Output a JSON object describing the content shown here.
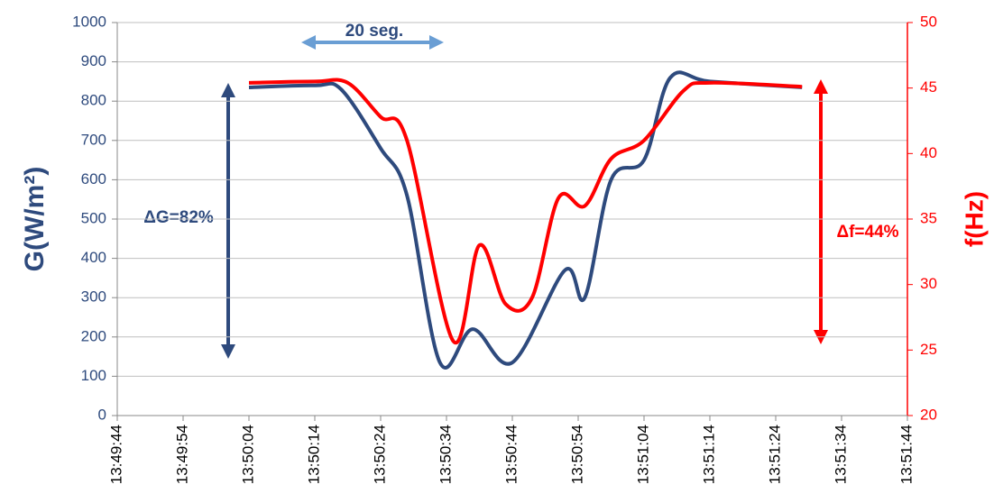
{
  "chart_data": {
    "type": "line",
    "y_title": "G(W/m²)",
    "y2_title": "f(Hz)",
    "annotations": [
      "20 seg.",
      "ΔG=82%",
      "Δf=44%"
    ],
    "xlim": [
      "13:49:44",
      "13:51:44"
    ],
    "xticks": [
      "13:49:44",
      "13:49:54",
      "13:50:04",
      "13:50:14",
      "13:50:24",
      "13:50:34",
      "13:50:44",
      "13:50:54",
      "13:51:04",
      "13:51:14",
      "13:51:24",
      "13:51:34",
      "13:51:44"
    ],
    "ylim": [
      0,
      1000
    ],
    "yticks": [
      0,
      100,
      200,
      300,
      400,
      500,
      600,
      700,
      800,
      900,
      1000
    ],
    "y2lim": [
      20,
      50
    ],
    "y2ticks": [
      20,
      25,
      30,
      35,
      40,
      45,
      50
    ],
    "grid": true,
    "series": [
      {
        "name": "G",
        "color": "#2e4a7d",
        "x": [
          "13:50:04",
          "13:50:14",
          "13:50:18",
          "13:50:24",
          "13:50:28",
          "13:50:33",
          "13:50:38",
          "13:50:44",
          "13:50:52",
          "13:50:55",
          "13:50:59",
          "13:51:04",
          "13:51:08",
          "13:51:14",
          "13:51:28"
        ],
        "values": [
          835,
          840,
          830,
          680,
          560,
          135,
          220,
          135,
          370,
          300,
          600,
          650,
          860,
          850,
          835
        ]
      },
      {
        "name": "f",
        "color": "#ff0000",
        "axis": "y2",
        "x": [
          "13:50:04",
          "13:50:14",
          "13:50:19",
          "13:50:24",
          "13:50:28",
          "13:50:35",
          "13:50:39",
          "13:50:43",
          "13:50:47",
          "13:50:51",
          "13:50:55",
          "13:50:59",
          "13:51:04",
          "13:51:10",
          "13:51:14",
          "13:51:28"
        ],
        "values": [
          45.4,
          45.5,
          45.4,
          42.8,
          41.0,
          25.7,
          33.0,
          28.5,
          29.0,
          36.6,
          36.0,
          39.6,
          41.0,
          44.8,
          45.4,
          45.1
        ]
      }
    ]
  }
}
